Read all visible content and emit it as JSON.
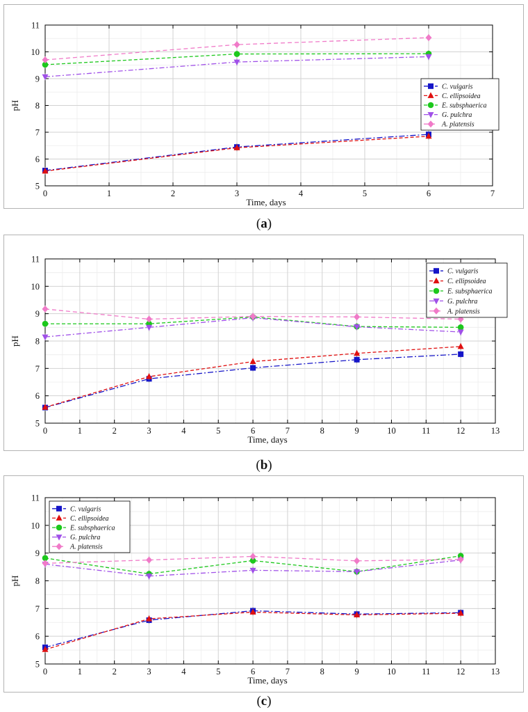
{
  "panels": [
    {
      "label": "a",
      "chart_data": {
        "type": "line",
        "xlabel": "Time, days",
        "ylabel": "pH",
        "xlim": [
          0,
          7
        ],
        "ylim": [
          5,
          11
        ],
        "xticks": [
          0,
          1,
          2,
          3,
          4,
          5,
          6,
          7
        ],
        "yticks": [
          5,
          6,
          7,
          8,
          9,
          10,
          11
        ],
        "grid": true,
        "legend_position": "right-middle",
        "series": [
          {
            "name": "C. vulgaris",
            "color": "#1515c8",
            "marker": "square",
            "dash": "8,3,2,3",
            "x": [
              0,
              3,
              6
            ],
            "y": [
              5.57,
              6.45,
              6.92
            ]
          },
          {
            "name": "C. ellipsoidea",
            "color": "#e01010",
            "marker": "triangle-up",
            "dash": "5,3",
            "x": [
              0,
              3,
              6
            ],
            "y": [
              5.55,
              6.42,
              6.85
            ]
          },
          {
            "name": "E. subsphaerica",
            "color": "#1cc81c",
            "marker": "circle",
            "dash": "5,3",
            "x": [
              0,
              3,
              6
            ],
            "y": [
              9.52,
              9.92,
              9.93
            ]
          },
          {
            "name": "G. pulchra",
            "color": "#a050e8",
            "marker": "triangle-down",
            "dash": "7,3,2,3",
            "x": [
              0,
              3,
              6
            ],
            "y": [
              9.07,
              9.62,
              9.82
            ]
          },
          {
            "name": "A. platensis",
            "color": "#f07ac8",
            "marker": "diamond",
            "dash": "6,4",
            "x": [
              0,
              3,
              6
            ],
            "y": [
              9.7,
              10.27,
              10.53
            ]
          }
        ]
      }
    },
    {
      "label": "b",
      "chart_data": {
        "type": "line",
        "xlabel": "Time, days",
        "ylabel": "pH",
        "xlim": [
          0,
          13
        ],
        "ylim": [
          5,
          11
        ],
        "xticks": [
          0,
          1,
          2,
          3,
          4,
          5,
          6,
          7,
          8,
          9,
          10,
          11,
          12,
          13
        ],
        "yticks": [
          5,
          6,
          7,
          8,
          9,
          10,
          11
        ],
        "grid": true,
        "legend_position": "top-right",
        "series": [
          {
            "name": "C. vulgaris",
            "color": "#1515c8",
            "marker": "square",
            "dash": "8,3,2,3",
            "x": [
              0,
              3,
              6,
              9,
              12
            ],
            "y": [
              5.57,
              6.62,
              7.02,
              7.32,
              7.52
            ]
          },
          {
            "name": "C. ellipsoidea",
            "color": "#e01010",
            "marker": "triangle-up",
            "dash": "5,3",
            "x": [
              0,
              3,
              6,
              9,
              12
            ],
            "y": [
              5.58,
              6.7,
              7.25,
              7.55,
              7.8
            ]
          },
          {
            "name": "E. subsphaerica",
            "color": "#1cc81c",
            "marker": "circle",
            "dash": "5,3",
            "x": [
              0,
              3,
              6,
              9,
              12
            ],
            "y": [
              8.63,
              8.63,
              8.88,
              8.53,
              8.5
            ]
          },
          {
            "name": "G. pulchra",
            "color": "#a050e8",
            "marker": "triangle-down",
            "dash": "7,3,2,3",
            "x": [
              0,
              3,
              6,
              9,
              12
            ],
            "y": [
              8.15,
              8.5,
              8.85,
              8.52,
              8.33
            ]
          },
          {
            "name": "A. platensis",
            "color": "#f07ac8",
            "marker": "diamond",
            "dash": "6,4",
            "x": [
              0,
              3,
              6,
              9,
              12
            ],
            "y": [
              9.17,
              8.8,
              8.9,
              8.88,
              8.8
            ]
          }
        ]
      }
    },
    {
      "label": "c",
      "chart_data": {
        "type": "line",
        "xlabel": "Time, days",
        "ylabel": "pH",
        "xlim": [
          0,
          13
        ],
        "ylim": [
          5,
          11
        ],
        "xticks": [
          0,
          1,
          2,
          3,
          4,
          5,
          6,
          7,
          8,
          9,
          10,
          11,
          12,
          13
        ],
        "yticks": [
          5,
          6,
          7,
          8,
          9,
          10,
          11
        ],
        "grid": true,
        "legend_position": "top-left",
        "series": [
          {
            "name": "C. vulgaris",
            "color": "#1515c8",
            "marker": "square",
            "dash": "8,3,2,3",
            "x": [
              0,
              3,
              6,
              9,
              12
            ],
            "y": [
              5.6,
              6.58,
              6.92,
              6.8,
              6.85
            ]
          },
          {
            "name": "C. ellipsoidea",
            "color": "#e01010",
            "marker": "triangle-up",
            "dash": "5,3",
            "x": [
              0,
              3,
              6,
              9,
              12
            ],
            "y": [
              5.52,
              6.63,
              6.87,
              6.77,
              6.83
            ]
          },
          {
            "name": "E. subsphaerica",
            "color": "#1cc81c",
            "marker": "circle",
            "dash": "5,3",
            "x": [
              0,
              3,
              6,
              9,
              12
            ],
            "y": [
              8.82,
              8.25,
              8.73,
              8.33,
              8.9
            ]
          },
          {
            "name": "G. pulchra",
            "color": "#a050e8",
            "marker": "triangle-down",
            "dash": "7,3,2,3",
            "x": [
              0,
              3,
              6,
              9,
              12
            ],
            "y": [
              8.6,
              8.17,
              8.38,
              8.33,
              8.75
            ]
          },
          {
            "name": "A. platensis",
            "color": "#f07ac8",
            "marker": "diamond",
            "dash": "6,4",
            "x": [
              0,
              3,
              6,
              9,
              12
            ],
            "y": [
              8.63,
              8.75,
              8.88,
              8.72,
              8.77
            ]
          }
        ]
      }
    }
  ]
}
